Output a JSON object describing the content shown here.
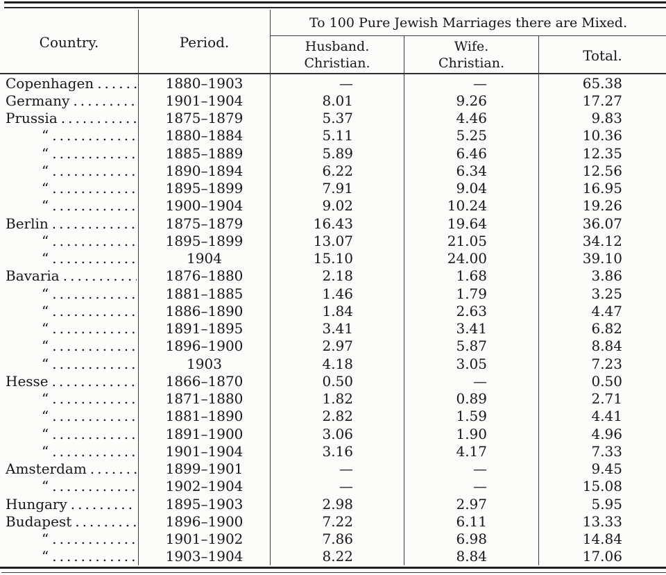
{
  "table": {
    "headers": {
      "country": "Country.",
      "period": "Period.",
      "span": "To 100 Pure Jewish Marriages there are Mixed.",
      "husband_line1": "Husband.",
      "husband_line2": "Christian.",
      "wife_line1": "Wife.",
      "wife_line2": "Christian.",
      "total": "Total."
    },
    "ditto_mark": "“",
    "leader_dots": "........................................",
    "rows": [
      {
        "country": "Copenhagen",
        "ditto": false,
        "period": "1880–1903",
        "husband": "—",
        "wife": "—",
        "total": "65.38"
      },
      {
        "country": "Germany",
        "ditto": false,
        "period": "1901–1904",
        "husband": "8.01",
        "wife": "9.26",
        "total": "17.27"
      },
      {
        "country": "Prussia",
        "ditto": false,
        "period": "1875–1879",
        "husband": "5.37",
        "wife": "4.46",
        "total": "9.83"
      },
      {
        "country": "",
        "ditto": true,
        "period": "1880–1884",
        "husband": "5.11",
        "wife": "5.25",
        "total": "10.36"
      },
      {
        "country": "",
        "ditto": true,
        "period": "1885–1889",
        "husband": "5.89",
        "wife": "6.46",
        "total": "12.35"
      },
      {
        "country": "",
        "ditto": true,
        "period": "1890–1894",
        "husband": "6.22",
        "wife": "6.34",
        "total": "12.56"
      },
      {
        "country": "",
        "ditto": true,
        "period": "1895–1899",
        "husband": "7.91",
        "wife": "9.04",
        "total": "16.95"
      },
      {
        "country": "",
        "ditto": true,
        "period": "1900–1904",
        "husband": "9.02",
        "wife": "10.24",
        "total": "19.26"
      },
      {
        "country": "Berlin",
        "ditto": false,
        "period": "1875–1879",
        "husband": "16.43",
        "wife": "19.64",
        "total": "36.07"
      },
      {
        "country": "",
        "ditto": true,
        "period": "1895–1899",
        "husband": "13.07",
        "wife": "21.05",
        "total": "34.12"
      },
      {
        "country": "",
        "ditto": true,
        "period": "1904",
        "husband": "15.10",
        "wife": "24.00",
        "total": "39.10"
      },
      {
        "country": "Bavaria",
        "ditto": false,
        "period": "1876–1880",
        "husband": "2.18",
        "wife": "1.68",
        "total": "3.86"
      },
      {
        "country": "",
        "ditto": true,
        "period": "1881–1885",
        "husband": "1.46",
        "wife": "1.79",
        "total": "3.25"
      },
      {
        "country": "",
        "ditto": true,
        "period": "1886–1890",
        "husband": "1.84",
        "wife": "2.63",
        "total": "4.47"
      },
      {
        "country": "",
        "ditto": true,
        "period": "1891–1895",
        "husband": "3.41",
        "wife": "3.41",
        "total": "6.82"
      },
      {
        "country": "",
        "ditto": true,
        "period": "1896–1900",
        "husband": "2.97",
        "wife": "5.87",
        "total": "8.84"
      },
      {
        "country": "",
        "ditto": true,
        "period": "1903",
        "husband": "4.18",
        "wife": "3.05",
        "total": "7.23"
      },
      {
        "country": "Hesse",
        "ditto": false,
        "period": "1866–1870",
        "husband": "0.50",
        "wife": "—",
        "total": "0.50"
      },
      {
        "country": "",
        "ditto": true,
        "period": "1871–1880",
        "husband": "1.82",
        "wife": "0.89",
        "total": "2.71"
      },
      {
        "country": "",
        "ditto": true,
        "period": "1881–1890",
        "husband": "2.82",
        "wife": "1.59",
        "total": "4.41"
      },
      {
        "country": "",
        "ditto": true,
        "period": "1891–1900",
        "husband": "3.06",
        "wife": "1.90",
        "total": "4.96"
      },
      {
        "country": "",
        "ditto": true,
        "period": "1901–1904",
        "husband": "3.16",
        "wife": "4.17",
        "total": "7.33"
      },
      {
        "country": "Amsterdam",
        "ditto": false,
        "period": "1899–1901",
        "husband": "—",
        "wife": "—",
        "total": "9.45"
      },
      {
        "country": "",
        "ditto": true,
        "period": "1902–1904",
        "husband": "—",
        "wife": "—",
        "total": "15.08"
      },
      {
        "country": "Hungary",
        "ditto": false,
        "period": "1895–1903",
        "husband": "2.98",
        "wife": "2.97",
        "total": "5.95"
      },
      {
        "country": "Budapest",
        "ditto": false,
        "period": "1896–1900",
        "husband": "7.22",
        "wife": "6.11",
        "total": "13.33"
      },
      {
        "country": "",
        "ditto": true,
        "period": "1901–1902",
        "husband": "7.86",
        "wife": "6.98",
        "total": "14.84"
      },
      {
        "country": "",
        "ditto": true,
        "period": "1903–1904",
        "husband": "8.22",
        "wife": "8.84",
        "total": "17.06"
      }
    ]
  }
}
